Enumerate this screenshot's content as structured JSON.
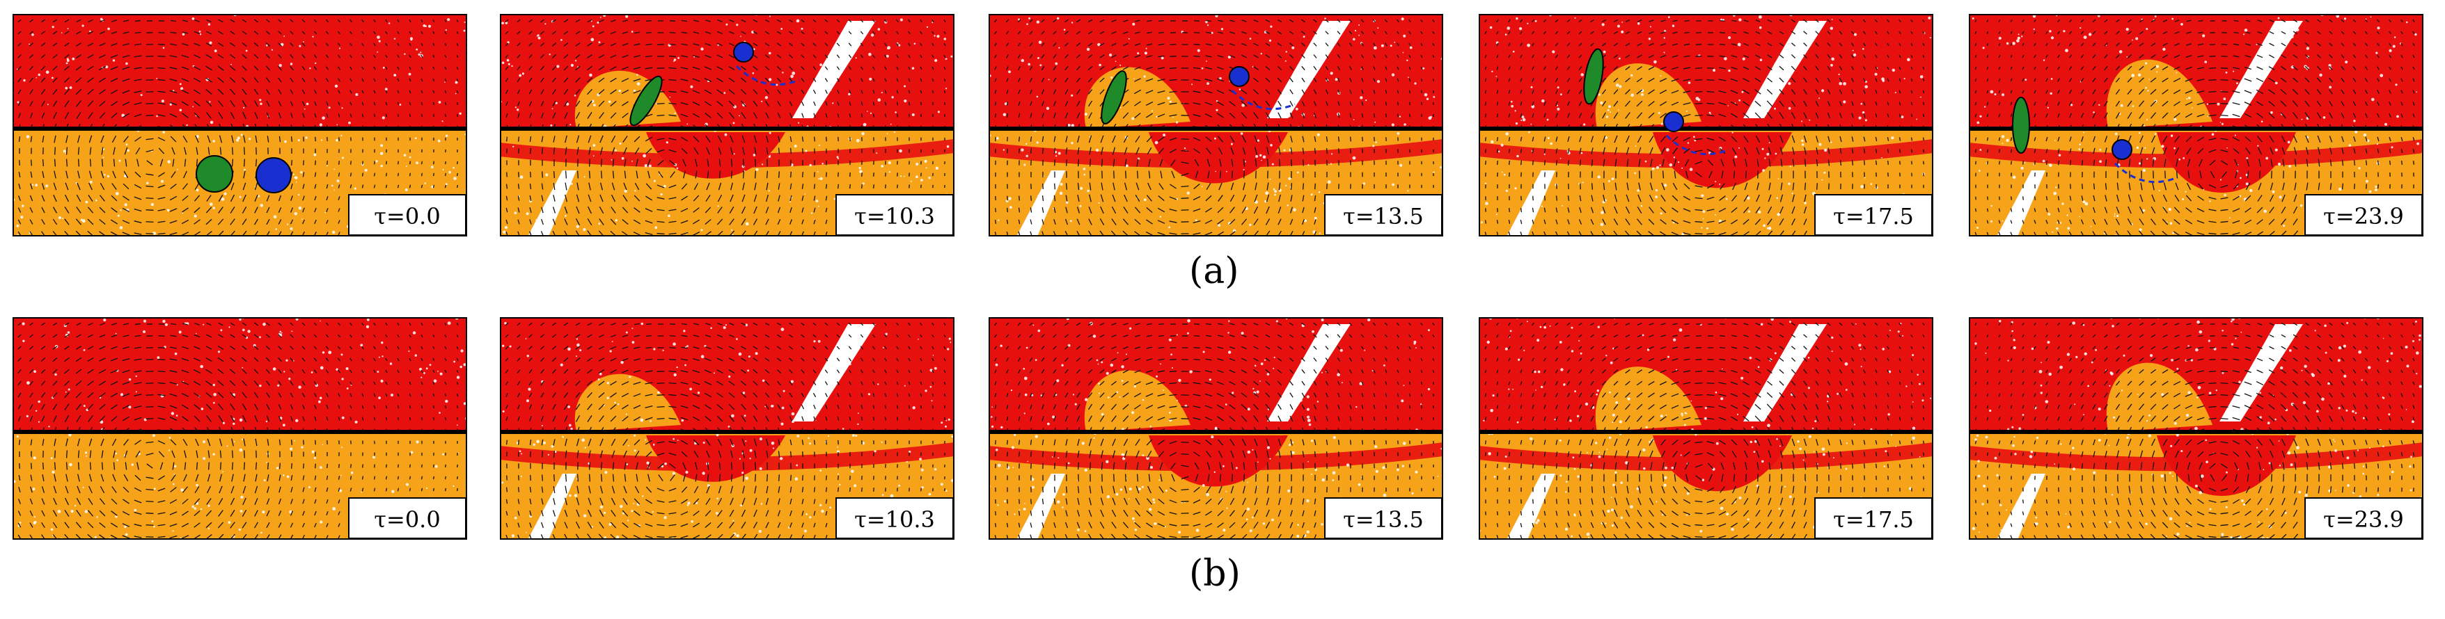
{
  "figure": {
    "rows": [
      {
        "label": "(a)",
        "panels": [
          {
            "tau": "τ=0.0",
            "particles": true
          },
          {
            "tau": "τ=10.3",
            "particles": true
          },
          {
            "tau": "τ=13.5",
            "particles": true
          },
          {
            "tau": "τ=17.5",
            "particles": true
          },
          {
            "tau": "τ=23.9",
            "particles": true
          }
        ]
      },
      {
        "label": "(b)",
        "panels": [
          {
            "tau": "τ=0.0",
            "particles": false
          },
          {
            "tau": "τ=10.3",
            "particles": false
          },
          {
            "tau": "τ=13.5",
            "particles": false
          },
          {
            "tau": "τ=17.5",
            "particles": false
          },
          {
            "tau": "τ=23.9",
            "particles": false
          }
        ]
      }
    ],
    "colors": {
      "upper_fluid": "#e8100f",
      "lower_fluid": "#f7a31a",
      "particle_green": "#1f8a2a",
      "particle_blue": "#1a2fd0",
      "interface_line": "#000000",
      "vectors": "#111111",
      "background": "#ffffff"
    }
  }
}
